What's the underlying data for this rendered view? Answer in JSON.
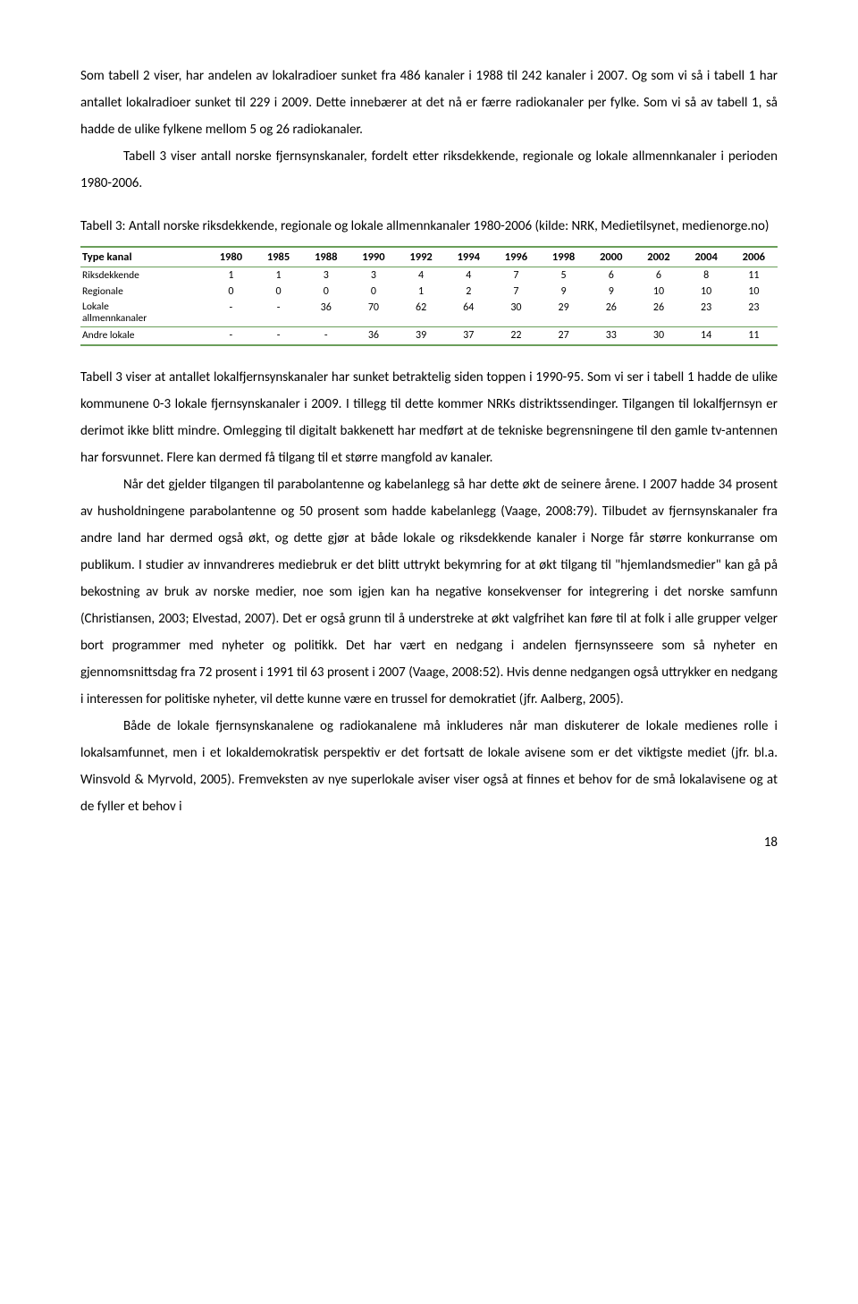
{
  "paragraphs": {
    "p1": "Som tabell 2 viser, har andelen av lokalradioer sunket fra 486 kanaler i 1988 til 242 kanaler i 2007. Og som vi så i tabell 1 har antallet lokalradioer sunket til 229 i 2009. Dette innebærer at det nå er færre radiokanaler per fylke. Som vi så av tabell 1, så hadde de ulike fylkene mellom 5 og 26 radiokanaler.",
    "p2": "Tabell 3 viser antall norske fjernsynskanaler, fordelt etter riksdekkende, regionale og lokale allmennkanaler i perioden 1980-2006.",
    "caption": "Tabell 3: Antall norske riksdekkende, regionale og lokale allmennkanaler 1980-2006 (kilde: NRK, Medietilsynet, medienorge.no)",
    "p3": "Tabell 3 viser at antallet lokalfjernsynskanaler har sunket betraktelig siden toppen i 1990-95. Som vi ser i tabell 1 hadde de ulike kommunene 0-3 lokale fjernsynskanaler i 2009. I tillegg til dette kommer NRKs distriktssendinger. Tilgangen til lokalfjernsyn er derimot ikke blitt mindre. Omlegging til digitalt bakkenett har medført at de tekniske begrensningene til den gamle tv-antennen har forsvunnet. Flere kan dermed få tilgang til et større mangfold av kanaler.",
    "p4": "Når det gjelder tilgangen til parabolantenne og kabelanlegg så har dette økt de seinere årene. I 2007 hadde 34 prosent av husholdningene parabolantenne og 50 prosent som hadde kabelanlegg (Vaage, 2008:79). Tilbudet av fjernsynskanaler fra andre land har dermed også økt, og dette gjør at både lokale og riksdekkende kanaler i Norge får større konkurranse om publikum. I studier av innvandreres mediebruk er det blitt uttrykt bekymring for at økt tilgang til \"hjemlandsmedier\" kan gå på bekostning av bruk av norske medier, noe som igjen kan ha negative konsekvenser for integrering i det norske samfunn (Christiansen, 2003; Elvestad, 2007). Det er også grunn til å understreke at økt valgfrihet kan føre til at folk i alle grupper velger bort programmer med nyheter og politikk. Det har vært en nedgang i andelen fjernsynsseere som så nyheter en gjennomsnittsdag fra 72 prosent i 1991 til 63 prosent i 2007 (Vaage, 2008:52). Hvis denne nedgangen også uttrykker en nedgang i interessen for politiske nyheter, vil dette kunne være en trussel for demokratiet (jfr. Aalberg, 2005).",
    "p5": "Både de lokale fjernsynskanalene og radiokanalene må inkluderes når man diskuterer de lokale medienes rolle i lokalsamfunnet, men i et lokaldemokratisk perspektiv er det fortsatt de lokale avisene som er det viktigste mediet (jfr. bl.a. Winsvold & Myrvold, 2005). Fremveksten av nye superlokale aviser viser også at finnes et behov for de små lokalavisene og at de fyller et behov i"
  },
  "table": {
    "headers": [
      "Type kanal",
      "1980",
      "1985",
      "1988",
      "1990",
      "1992",
      "1994",
      "1996",
      "1998",
      "2000",
      "2002",
      "2004",
      "2006"
    ],
    "rows": [
      {
        "label": "Riksdekkende",
        "cells": [
          "1",
          "1",
          "3",
          "3",
          "4",
          "4",
          "7",
          "5",
          "6",
          "6",
          "8",
          "11"
        ]
      },
      {
        "label": "Regionale",
        "cells": [
          "0",
          "0",
          "0",
          "0",
          "1",
          "2",
          "7",
          "9",
          "9",
          "10",
          "10",
          "10"
        ]
      },
      {
        "label": "Lokale allmennkanaler",
        "cells": [
          "-",
          "-",
          "36",
          "70",
          "62",
          "64",
          "30",
          "29",
          "26",
          "26",
          "23",
          "23"
        ]
      },
      {
        "label": "Andre lokale",
        "cells": [
          "-",
          "-",
          "-",
          "36",
          "39",
          "37",
          "22",
          "27",
          "33",
          "30",
          "14",
          "11"
        ]
      }
    ]
  },
  "colors": {
    "table_border": "#6a9e5a",
    "text": "#000000",
    "background": "#ffffff"
  },
  "page_number": "18"
}
